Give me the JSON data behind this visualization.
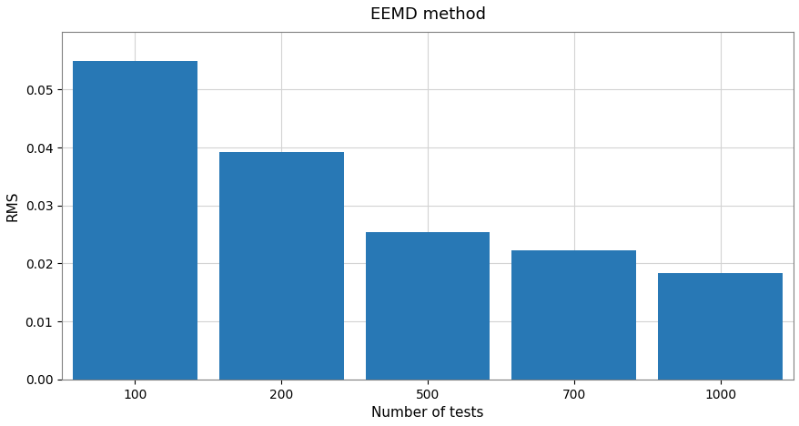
{
  "title": "EEMD method",
  "xlabel": "Number of tests",
  "ylabel": "RMS",
  "categories": [
    "100",
    "200",
    "500",
    "700",
    "1000"
  ],
  "values": [
    0.055,
    0.0393,
    0.0254,
    0.0222,
    0.0184
  ],
  "bar_color": "#2878b5",
  "ylim": [
    0,
    0.06
  ],
  "yticks": [
    0.0,
    0.01,
    0.02,
    0.03,
    0.04,
    0.05
  ],
  "grid": true,
  "background_color": "#ffffff",
  "title_fontsize": 13,
  "label_fontsize": 11,
  "bar_width": 0.85
}
